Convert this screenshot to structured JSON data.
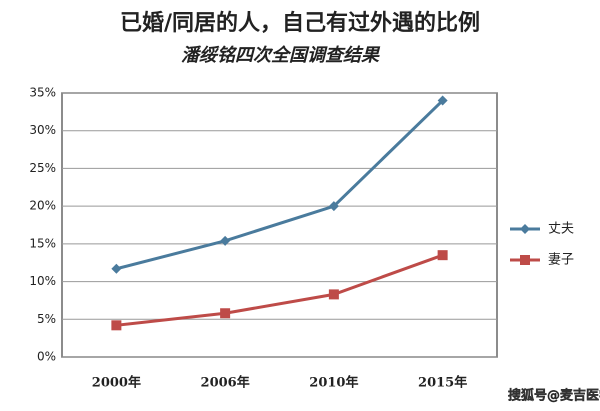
{
  "chart_data": {
    "type": "line",
    "title": "已婚/同居的人，自己有过外遇的比例",
    "subtitle": "潘绥铭四次全国调查结果",
    "categories": [
      "2000年",
      "2006年",
      "2010年",
      "2015年"
    ],
    "series": [
      {
        "name": "丈夫",
        "color": "#4a7b9d",
        "marker": "diamond",
        "values": [
          11.7,
          15.4,
          20,
          34
        ]
      },
      {
        "name": "妻子",
        "color": "#be4b48",
        "marker": "square",
        "values": [
          4.2,
          5.8,
          8.3,
          13.5
        ]
      }
    ],
    "ylim": [
      0,
      35
    ],
    "yticks": [
      {
        "value": 0,
        "label": "0%"
      },
      {
        "value": 5,
        "label": "5%"
      },
      {
        "value": 10,
        "label": "10%"
      },
      {
        "value": 15,
        "label": "15%"
      },
      {
        "value": 20,
        "label": "20%"
      },
      {
        "value": 25,
        "label": "25%"
      },
      {
        "value": 30,
        "label": "30%"
      },
      {
        "value": 35,
        "label": "35%"
      }
    ],
    "grid": true,
    "legend": "right",
    "watermark": "搜狐号@麦吉医学"
  }
}
